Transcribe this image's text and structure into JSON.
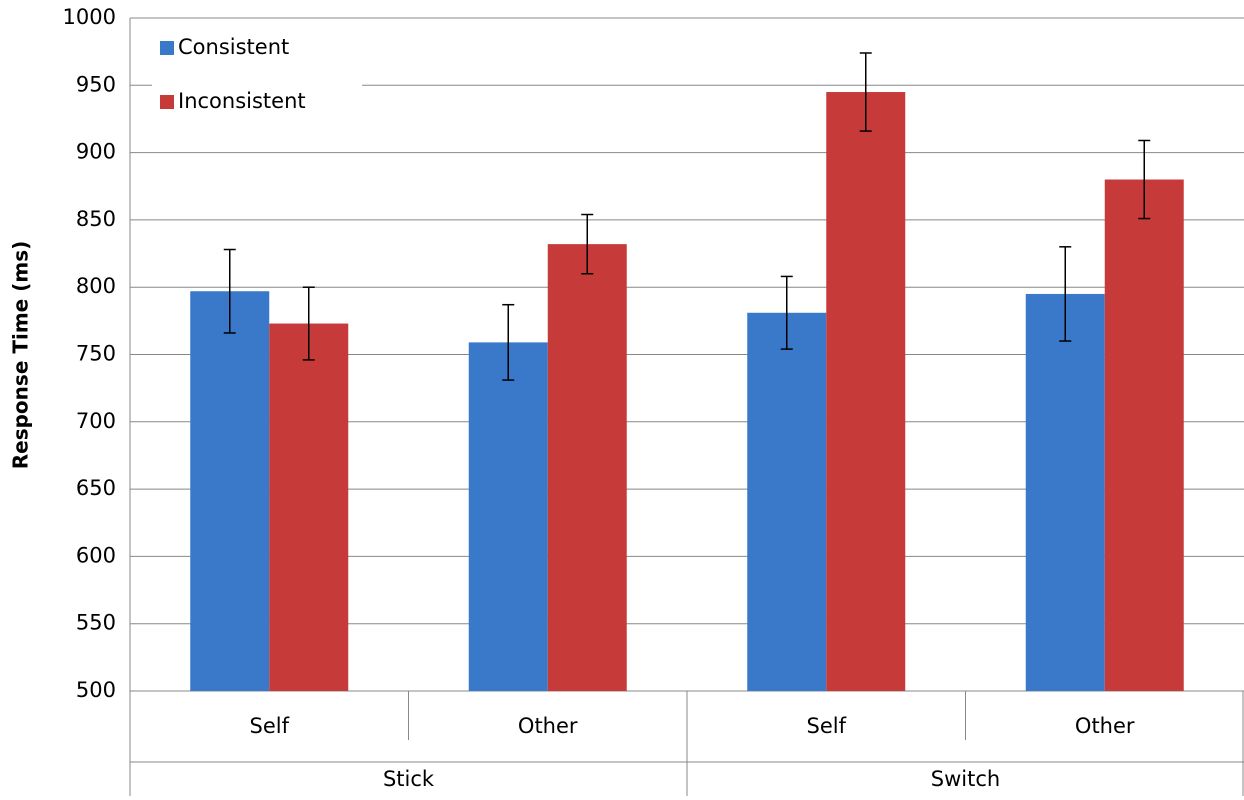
{
  "chart_data": {
    "type": "bar",
    "y_label": "Response Time (ms)",
    "groups": [
      "Stick",
      "Switch"
    ],
    "categories": [
      "Self",
      "Other",
      "Self",
      "Other"
    ],
    "series": [
      {
        "name": "Consistent",
        "color": "#3a78c9",
        "values": [
          797,
          759,
          781,
          795
        ],
        "errors": [
          31,
          28,
          27,
          35
        ]
      },
      {
        "name": "Inconsistent",
        "color": "#c73a3a",
        "values": [
          773,
          832,
          945,
          880
        ],
        "errors": [
          27,
          22,
          29,
          29
        ]
      }
    ],
    "ylim": [
      500,
      1000
    ],
    "yticks": [
      500,
      550,
      600,
      650,
      700,
      750,
      800,
      850,
      900,
      950,
      1000
    ],
    "grid": true,
    "legend": "top-left"
  }
}
